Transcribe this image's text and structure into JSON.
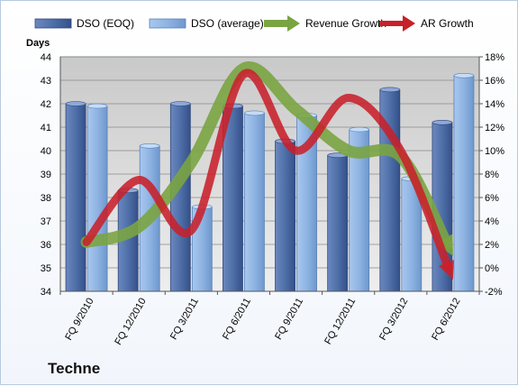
{
  "chart_data": {
    "type": "bar",
    "title": "",
    "ylabel": "Days",
    "ylim": [
      34,
      44
    ],
    "y2lim": [
      -2,
      18
    ],
    "y2_suffix": "%",
    "grid": true,
    "legend_position": "top",
    "categories": [
      "FQ 9/2010",
      "FQ 12/2010",
      "FQ 3/2011",
      "FQ 6/2011",
      "FQ 9/2011",
      "FQ 12/2011",
      "FQ 3/2012",
      "FQ 6/2012"
    ],
    "series": [
      {
        "name": "DSO (EOQ)",
        "kind": "bar",
        "axis": "left",
        "color": "#4f6fa8",
        "values": [
          42.0,
          38.3,
          42.0,
          41.9,
          40.4,
          39.8,
          42.6,
          41.2
        ]
      },
      {
        "name": "DSO (average)",
        "kind": "bar",
        "axis": "left",
        "color": "#8eb4e3",
        "values": [
          41.9,
          40.2,
          37.6,
          41.6,
          41.5,
          40.9,
          38.8,
          43.2
        ]
      },
      {
        "name": "Revenue Growth",
        "kind": "arrow-line",
        "axis": "right",
        "color": "#7aa442",
        "values": [
          2.2,
          3.5,
          9.0,
          17.0,
          13.5,
          10.0,
          9.5,
          1.0
        ]
      },
      {
        "name": "AR Growth",
        "kind": "arrow-line",
        "axis": "right",
        "color": "#c8202a",
        "values": [
          2.2,
          7.5,
          3.2,
          16.5,
          10.0,
          14.5,
          10.0,
          -1.0
        ]
      }
    ]
  },
  "company": "Techne"
}
